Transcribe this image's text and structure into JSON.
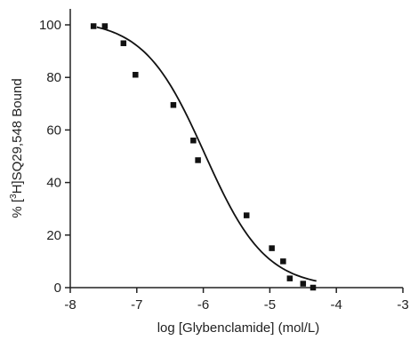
{
  "chart_data": {
    "type": "scatter",
    "title": "",
    "xlabel": "log [Glybenclamide] (mol/L)",
    "ylabel_prefix": "% [",
    "ylabel_sup": "3",
    "ylabel_suffix": "H]SQ29,548 Bound",
    "xlim": [
      -8,
      -3
    ],
    "ylim": [
      0,
      100
    ],
    "xticks": [
      -8,
      -7,
      -6,
      -5,
      -4,
      -3
    ],
    "xtick_labels": [
      "-8",
      "-7",
      "-6",
      "-5",
      "-4",
      "-3"
    ],
    "yticks": [
      0,
      20,
      40,
      60,
      80,
      100
    ],
    "ytick_labels": [
      "0",
      "20",
      "40",
      "60",
      "80",
      "100"
    ],
    "grid": false,
    "legend": "none",
    "points": [
      {
        "x": -7.65,
        "y": 99.5
      },
      {
        "x": -7.48,
        "y": 99.5
      },
      {
        "x": -7.2,
        "y": 93
      },
      {
        "x": -7.02,
        "y": 81
      },
      {
        "x": -6.45,
        "y": 69.5
      },
      {
        "x": -6.15,
        "y": 56
      },
      {
        "x": -6.08,
        "y": 48.5
      },
      {
        "x": -5.35,
        "y": 27.5
      },
      {
        "x": -4.97,
        "y": 15
      },
      {
        "x": -4.8,
        "y": 10
      },
      {
        "x": -4.7,
        "y": 3.5
      },
      {
        "x": -4.5,
        "y": 1.5
      },
      {
        "x": -4.35,
        "y": 0
      }
    ],
    "fit_curve": {
      "type": "sigmoid",
      "top": 102,
      "bottom": 0,
      "log_ic50": -5.98,
      "hill_slope": 0.95,
      "x_range": [
        -7.6,
        -4.3
      ]
    },
    "colors": {
      "axis": "#222222",
      "marker": "#111111",
      "curve": "#111111"
    }
  }
}
